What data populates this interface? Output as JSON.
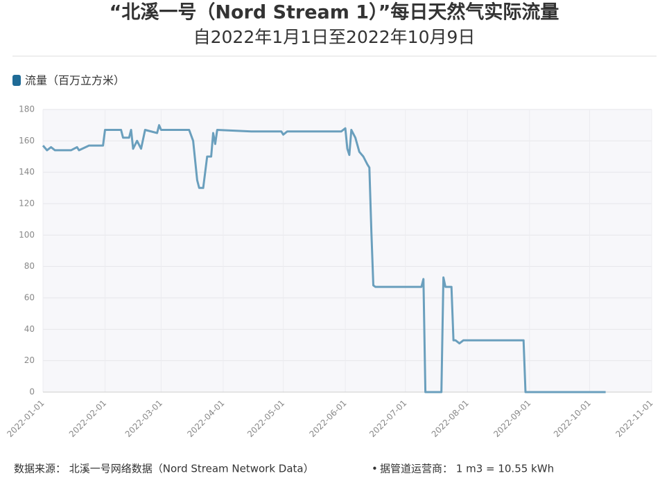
{
  "chart_data": {
    "type": "line",
    "title": "“北溪一号（Nord Stream 1）”每日天然气实际流量",
    "subtitle": "自2022年1月1日至2022年10月9日",
    "source": "数据来源： 北溪一号网络数据（Nord Stream Network Data）",
    "note": "据管道运营商： 1 m3 = 10.55 kWh",
    "x": [
      "2022-01-01",
      "2022-01-03",
      "2022-01-05",
      "2022-01-07",
      "2022-01-15",
      "2022-01-18",
      "2022-01-19",
      "2022-01-24",
      "2022-01-31",
      "2022-02-01",
      "2022-02-09",
      "2022-02-10",
      "2022-02-13",
      "2022-02-14",
      "2022-02-15",
      "2022-02-17",
      "2022-02-19",
      "2022-02-21",
      "2022-02-27",
      "2022-02-28",
      "2022-03-01",
      "2022-03-15",
      "2022-03-17",
      "2022-03-19",
      "2022-03-20",
      "2022-03-22",
      "2022-03-24",
      "2022-03-26",
      "2022-03-27",
      "2022-03-28",
      "2022-03-29",
      "2022-04-15",
      "2022-04-30",
      "2022-05-01",
      "2022-05-03",
      "2022-05-30",
      "2022-06-01",
      "2022-06-02",
      "2022-06-03",
      "2022-06-04",
      "2022-06-06",
      "2022-06-08",
      "2022-06-10",
      "2022-06-12",
      "2022-06-13",
      "2022-06-14",
      "2022-06-15",
      "2022-06-16",
      "2022-07-09",
      "2022-07-10",
      "2022-07-11",
      "2022-07-19",
      "2022-07-20",
      "2022-07-21",
      "2022-07-24",
      "2022-07-25",
      "2022-07-26",
      "2022-07-28",
      "2022-07-30",
      "2022-08-29",
      "2022-08-30",
      "2022-10-09"
    ],
    "series": [
      {
        "name": "流量（百万立方米）",
        "color": "#6a9fbd",
        "values": [
          157,
          154,
          156,
          154,
          154,
          156,
          154,
          157,
          157,
          167,
          167,
          162,
          162,
          167,
          155,
          160,
          155,
          167,
          165,
          170,
          167,
          167,
          160,
          135,
          130,
          130,
          150,
          150,
          165,
          158,
          167,
          166,
          166,
          164,
          166,
          166,
          168,
          155,
          151,
          167,
          162,
          153,
          150,
          145,
          143,
          102,
          68,
          67,
          67,
          72,
          0,
          0,
          73,
          67,
          67,
          33,
          33,
          31,
          33,
          33,
          0,
          0
        ]
      }
    ],
    "xlim": [
      "2022-01-01",
      "2022-11-01"
    ],
    "xticks": [
      "2022-01-01",
      "2022-02-01",
      "2022-03-01",
      "2022-04-01",
      "2022-05-01",
      "2022-06-01",
      "2022-07-01",
      "2022-08-01",
      "2022-09-01",
      "2022-10-01",
      "2022-11-01"
    ],
    "ylim": [
      0,
      180
    ],
    "yticks": [
      0,
      20,
      40,
      60,
      80,
      100,
      120,
      140,
      160,
      180
    ],
    "legend_color": "#1f6b96",
    "grid": true
  }
}
